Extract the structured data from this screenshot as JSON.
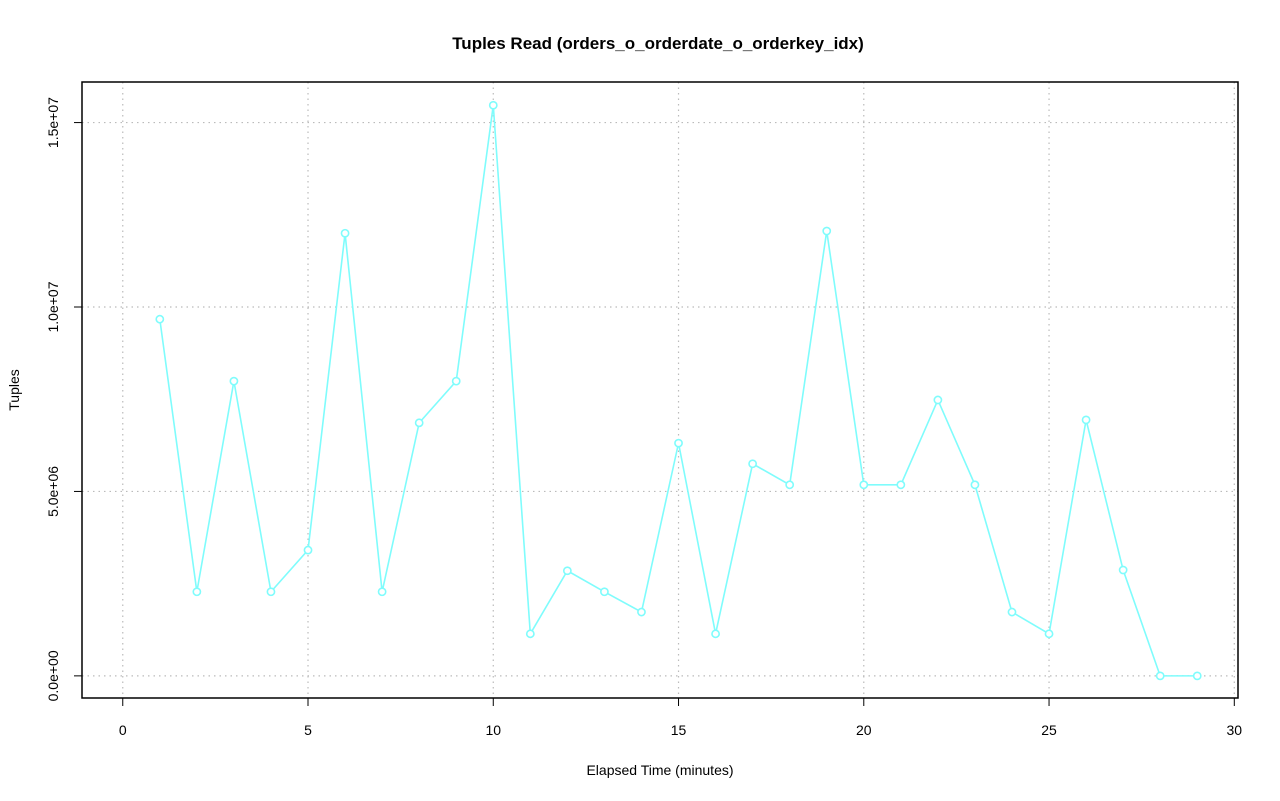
{
  "chart_data": {
    "type": "line",
    "title": "Tuples Read (orders_o_orderdate_o_orderkey_idx)",
    "xlabel": "Elapsed Time (minutes)",
    "ylabel": "Tuples",
    "xlim": [
      -1.1,
      30.1
    ],
    "ylim": [
      -600000,
      16100000
    ],
    "xticks": [
      0,
      5,
      10,
      15,
      20,
      25,
      30
    ],
    "xtick_labels": [
      "0",
      "5",
      "10",
      "15",
      "20",
      "25",
      "30"
    ],
    "yticks": [
      0,
      5000000,
      10000000,
      15000000
    ],
    "ytick_labels": [
      "0.0e+00",
      "5.0e+06",
      "1.0e+07",
      "1.5e+07"
    ],
    "grid": true,
    "series": [
      {
        "name": "Tuples Read",
        "color": "#7ffcfc",
        "x": [
          1,
          2,
          3,
          4,
          5,
          6,
          7,
          8,
          9,
          10,
          11,
          12,
          13,
          14,
          15,
          16,
          17,
          18,
          19,
          20,
          21,
          22,
          23,
          24,
          25,
          26,
          27,
          28,
          29
        ],
        "values": [
          9670000,
          2280000,
          7990000,
          2280000,
          3410000,
          12000000,
          2280000,
          6860000,
          7990000,
          15470000,
          1140000,
          2850000,
          2280000,
          1730000,
          6310000,
          1140000,
          5750000,
          5180000,
          12060000,
          5180000,
          5180000,
          7480000,
          5180000,
          1730000,
          1140000,
          6940000,
          2870000,
          0,
          0
        ]
      }
    ]
  }
}
